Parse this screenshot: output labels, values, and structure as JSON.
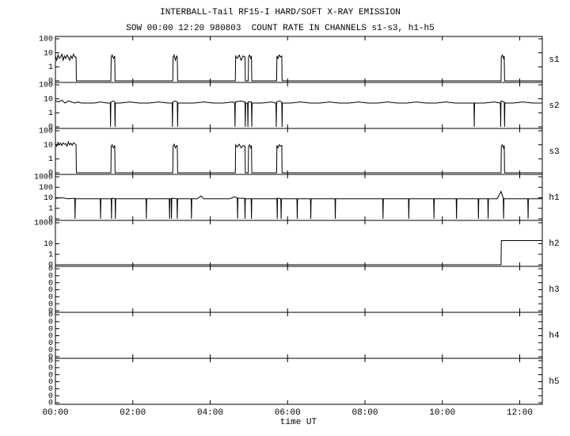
{
  "chart_data": {
    "type": "line",
    "title": "INTERBALL-Tail RF15-I HARD/SOFT X-RAY EMISSION",
    "subtitle": "SOW 00:00 12:20 980803  COUNT RATE IN CHANNELS s1-s3, h1-h5",
    "xlabel": "time UT",
    "xlim": [
      0,
      755
    ],
    "xticks": [
      {
        "value": 0,
        "label": "00:00"
      },
      {
        "value": 120,
        "label": "02:00"
      },
      {
        "value": 240,
        "label": "04:00"
      },
      {
        "value": 360,
        "label": "06:00"
      },
      {
        "value": 480,
        "label": "08:00"
      },
      {
        "value": 600,
        "label": "10:00"
      },
      {
        "value": 720,
        "label": "12:00"
      }
    ],
    "color": "#000000",
    "panels": [
      {
        "name": "s1",
        "yscale": "log",
        "ylim": [
          0,
          100
        ],
        "yticks": [
          0,
          1,
          10,
          100
        ],
        "x": [
          0,
          2,
          4,
          6,
          8,
          10,
          12,
          14,
          16,
          18,
          20,
          22,
          24,
          26,
          28,
          30,
          32,
          32.5,
          86,
          86.5,
          88,
          90,
          92,
          92.5,
          182,
          182.5,
          184,
          186,
          188,
          189,
          189.5,
          279,
          279.5,
          282,
          285,
          288,
          291,
          294,
          294.5,
          299,
          299.5,
          301,
          303,
          304,
          304.5,
          343,
          343.5,
          345,
          347,
          349,
          351,
          351.5,
          691,
          691.5,
          693,
          695,
          696,
          696.5,
          755
        ],
        "values": [
          6,
          3,
          7,
          4,
          5,
          8,
          3,
          6,
          4,
          7,
          5,
          3,
          6,
          4,
          8,
          5,
          5,
          0,
          0,
          5,
          7,
          4,
          6,
          0,
          0,
          5,
          7,
          3,
          6,
          5,
          0,
          0,
          6,
          4,
          7,
          3,
          6,
          5,
          0,
          0,
          5,
          7,
          4,
          6,
          0,
          0,
          6,
          4,
          7,
          5,
          6,
          0,
          0,
          5,
          7,
          4,
          6,
          0,
          0
        ]
      },
      {
        "name": "s2",
        "yscale": "log",
        "ylim": [
          0,
          100
        ],
        "yticks": [
          0,
          1,
          10,
          100
        ],
        "x": [
          0,
          5,
          10,
          15,
          20,
          25,
          30,
          35,
          40,
          50,
          60,
          70,
          80,
          85,
          85.5,
          86,
          90,
          92,
          92.5,
          93,
          100,
          115,
          130,
          145,
          160,
          175,
          181,
          181.5,
          182,
          186,
          189,
          189.5,
          190,
          200,
          215,
          230,
          245,
          260,
          275,
          278,
          278.5,
          279,
          287,
          294,
          294.5,
          295,
          298,
          298.5,
          299,
          304,
          304.5,
          305,
          320,
          335,
          342,
          342.5,
          343,
          347,
          351,
          351.5,
          352,
          365,
          380,
          395,
          410,
          425,
          440,
          455,
          470,
          485,
          500,
          515,
          530,
          545,
          560,
          575,
          590,
          605,
          620,
          635,
          649,
          649.5,
          650,
          665,
          680,
          690,
          690.5,
          691,
          696,
          696.5,
          697,
          710,
          725,
          740,
          755
        ],
        "values": [
          7,
          6,
          8,
          5,
          7,
          6,
          5,
          6,
          5,
          5,
          5,
          6,
          5,
          5,
          0,
          6,
          7,
          6,
          0,
          5,
          5,
          6,
          5,
          5,
          6,
          5,
          5,
          0,
          6,
          7,
          6,
          0,
          5,
          5,
          5,
          6,
          5,
          5,
          6,
          5,
          0,
          6,
          7,
          6,
          0,
          5,
          5,
          0,
          6,
          6,
          0,
          5,
          5,
          6,
          5,
          0,
          6,
          7,
          6,
          0,
          5,
          5,
          6,
          5,
          5,
          6,
          5,
          5,
          6,
          5,
          5,
          6,
          5,
          5,
          6,
          5,
          5,
          6,
          5,
          5,
          5,
          0,
          5,
          5,
          6,
          5,
          0,
          7,
          6,
          0,
          5,
          5,
          6,
          5,
          5
        ]
      },
      {
        "name": "s3",
        "yscale": "log",
        "ylim": [
          0,
          100
        ],
        "yticks": [
          0,
          1,
          10,
          100
        ],
        "x": [
          0,
          2,
          4,
          6,
          8,
          10,
          12,
          14,
          16,
          18,
          20,
          22,
          24,
          26,
          28,
          30,
          32,
          32.5,
          86,
          86.5,
          88,
          90,
          92,
          92.5,
          182,
          182.5,
          184,
          186,
          188,
          189,
          189.5,
          279,
          279.5,
          282,
          285,
          288,
          291,
          294,
          294.5,
          299,
          299.5,
          301,
          303,
          304,
          304.5,
          343,
          343.5,
          345,
          347,
          349,
          351,
          351.5,
          691,
          691.5,
          693,
          695,
          696,
          696.5,
          755
        ],
        "values": [
          12,
          8,
          15,
          10,
          13,
          9,
          14,
          11,
          12,
          8,
          16,
          10,
          13,
          9,
          14,
          12,
          10,
          0,
          0,
          8,
          10,
          6,
          9,
          0,
          0,
          8,
          11,
          6,
          9,
          8,
          0,
          0,
          10,
          7,
          11,
          6,
          9,
          8,
          0,
          0,
          8,
          10,
          6,
          9,
          0,
          0,
          9,
          6,
          10,
          8,
          9,
          0,
          0,
          8,
          10,
          6,
          9,
          0,
          0
        ]
      },
      {
        "name": "h1",
        "yscale": "log",
        "ylim": [
          0,
          1000
        ],
        "yticks": [
          0,
          1,
          10,
          100,
          1000
        ],
        "x": [
          0,
          10,
          20,
          30,
          30.5,
          31,
          45,
          60,
          69.5,
          70,
          70.5,
          80,
          86.5,
          87,
          87.5,
          92.5,
          93,
          93.5,
          110,
          125,
          140.5,
          141,
          141.5,
          160,
          176.5,
          177,
          177.5,
          179.5,
          180,
          180.5,
          188.5,
          189,
          189.5,
          200,
          210.5,
          211,
          211.5,
          220,
          226,
          230,
          250,
          270,
          278,
          282,
          282.5,
          283,
          293.5,
          294,
          294.5,
          303.5,
          304,
          304.5,
          320,
          343.5,
          344,
          344.5,
          349.5,
          350,
          350.5,
          374.5,
          375,
          375.5,
          395.5,
          396,
          396.5,
          415,
          433.5,
          434,
          434.5,
          455,
          480,
          507.5,
          508,
          508.5,
          530,
          547.5,
          548,
          548.5,
          570,
          586.5,
          587,
          587.5,
          605,
          621.5,
          622,
          622.5,
          640,
          655.5,
          656,
          656.5,
          670.5,
          671,
          671.5,
          685,
          691,
          694.5,
          695,
          695.5,
          710,
          732.5,
          733,
          733.5,
          755
        ],
        "values": [
          9,
          10,
          8,
          9,
          0,
          8,
          8,
          8,
          8,
          0,
          8,
          8,
          8,
          0,
          9,
          8,
          0,
          8,
          8,
          8,
          8,
          0,
          8,
          8,
          8,
          0,
          8,
          8,
          0,
          9,
          8,
          0,
          8,
          8,
          8,
          0,
          8,
          8,
          15,
          8,
          8,
          8,
          12,
          10,
          0,
          9,
          9,
          0,
          8,
          8,
          0,
          8,
          8,
          8,
          0,
          9,
          8,
          0,
          8,
          8,
          0,
          8,
          8,
          0,
          8,
          8,
          8,
          0,
          8,
          8,
          8,
          8,
          0,
          8,
          8,
          8,
          0,
          8,
          8,
          8,
          0,
          8,
          8,
          8,
          0,
          8,
          8,
          8,
          0,
          8,
          8,
          0,
          8,
          8,
          40,
          10,
          0,
          8,
          8,
          8,
          0,
          8,
          8
        ]
      },
      {
        "name": "h2",
        "yscale": "log",
        "ylim": [
          0,
          1000
        ],
        "yticks": [
          0,
          1,
          10,
          1000
        ],
        "x": [
          0,
          691,
          691.5,
          755
        ],
        "values": [
          0,
          0,
          20,
          20
        ]
      },
      {
        "name": "h3",
        "yscale": "linear",
        "ylim": [
          0,
          0.0006
        ],
        "yticks": [
          0,
          {
            "value": 0.0001,
            "label": "0"
          },
          {
            "value": 0.0002,
            "label": "0"
          },
          {
            "value": 0.0003,
            "label": "0"
          },
          {
            "value": 0.0004,
            "label": "0"
          },
          {
            "value": 0.0005,
            "label": "0"
          },
          {
            "value": 0.0006,
            "label": "0"
          }
        ]
      },
      {
        "name": "h4",
        "yscale": "linear",
        "ylim": [
          0,
          0.0006
        ],
        "yticks": [
          0,
          {
            "value": 0.0001,
            "label": "0"
          },
          {
            "value": 0.0002,
            "label": "0"
          },
          {
            "value": 0.0003,
            "label": "0"
          },
          {
            "value": 0.0004,
            "label": "0"
          },
          {
            "value": 0.0005,
            "label": "0"
          },
          {
            "value": 0.0006,
            "label": "0"
          }
        ]
      },
      {
        "name": "h5",
        "yscale": "linear",
        "ylim": [
          0,
          0.0006
        ],
        "yticks": [
          0,
          {
            "value": 0.0001,
            "label": "0"
          },
          {
            "value": 0.0002,
            "label": "0"
          },
          {
            "value": 0.0003,
            "label": "0"
          },
          {
            "value": 0.0004,
            "label": "0"
          },
          {
            "value": 0.0005,
            "label": "0"
          },
          {
            "value": 0.0006,
            "label": "0"
          }
        ]
      }
    ]
  }
}
